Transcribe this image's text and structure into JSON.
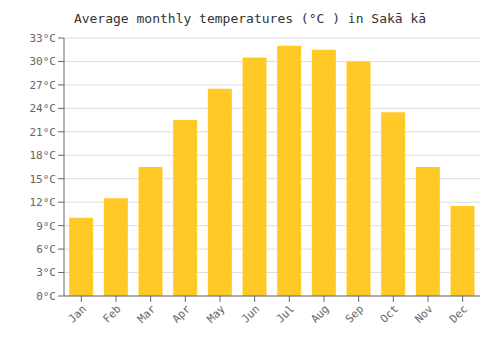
{
  "chart_data": {
    "type": "bar",
    "title": "Average monthly temperatures (°C ) in Sakā kā",
    "categories": [
      "Jan",
      "Feb",
      "Mar",
      "Apr",
      "May",
      "Jun",
      "Jul",
      "Aug",
      "Sep",
      "Oct",
      "Nov",
      "Dec"
    ],
    "values": [
      10,
      12.5,
      16.5,
      22.5,
      26.5,
      30.5,
      32,
      31.5,
      30,
      23.5,
      16.5,
      11.5
    ],
    "color": "#FFCA28",
    "ylim": [
      0,
      33
    ],
    "yticks": [
      {
        "value": 0,
        "label": "0°C"
      },
      {
        "value": 3,
        "label": "3°C"
      },
      {
        "value": 6,
        "label": "6°C"
      },
      {
        "value": 9,
        "label": "9°C"
      },
      {
        "value": 12,
        "label": "12°C"
      },
      {
        "value": 15,
        "label": "15°C"
      },
      {
        "value": 18,
        "label": "18°C"
      },
      {
        "value": 21,
        "label": "21°C"
      },
      {
        "value": 24,
        "label": "24°C"
      },
      {
        "value": 27,
        "label": "27°C"
      },
      {
        "value": 30,
        "label": "30°C"
      },
      {
        "value": 33,
        "label": "33°C"
      }
    ],
    "grid": true
  }
}
